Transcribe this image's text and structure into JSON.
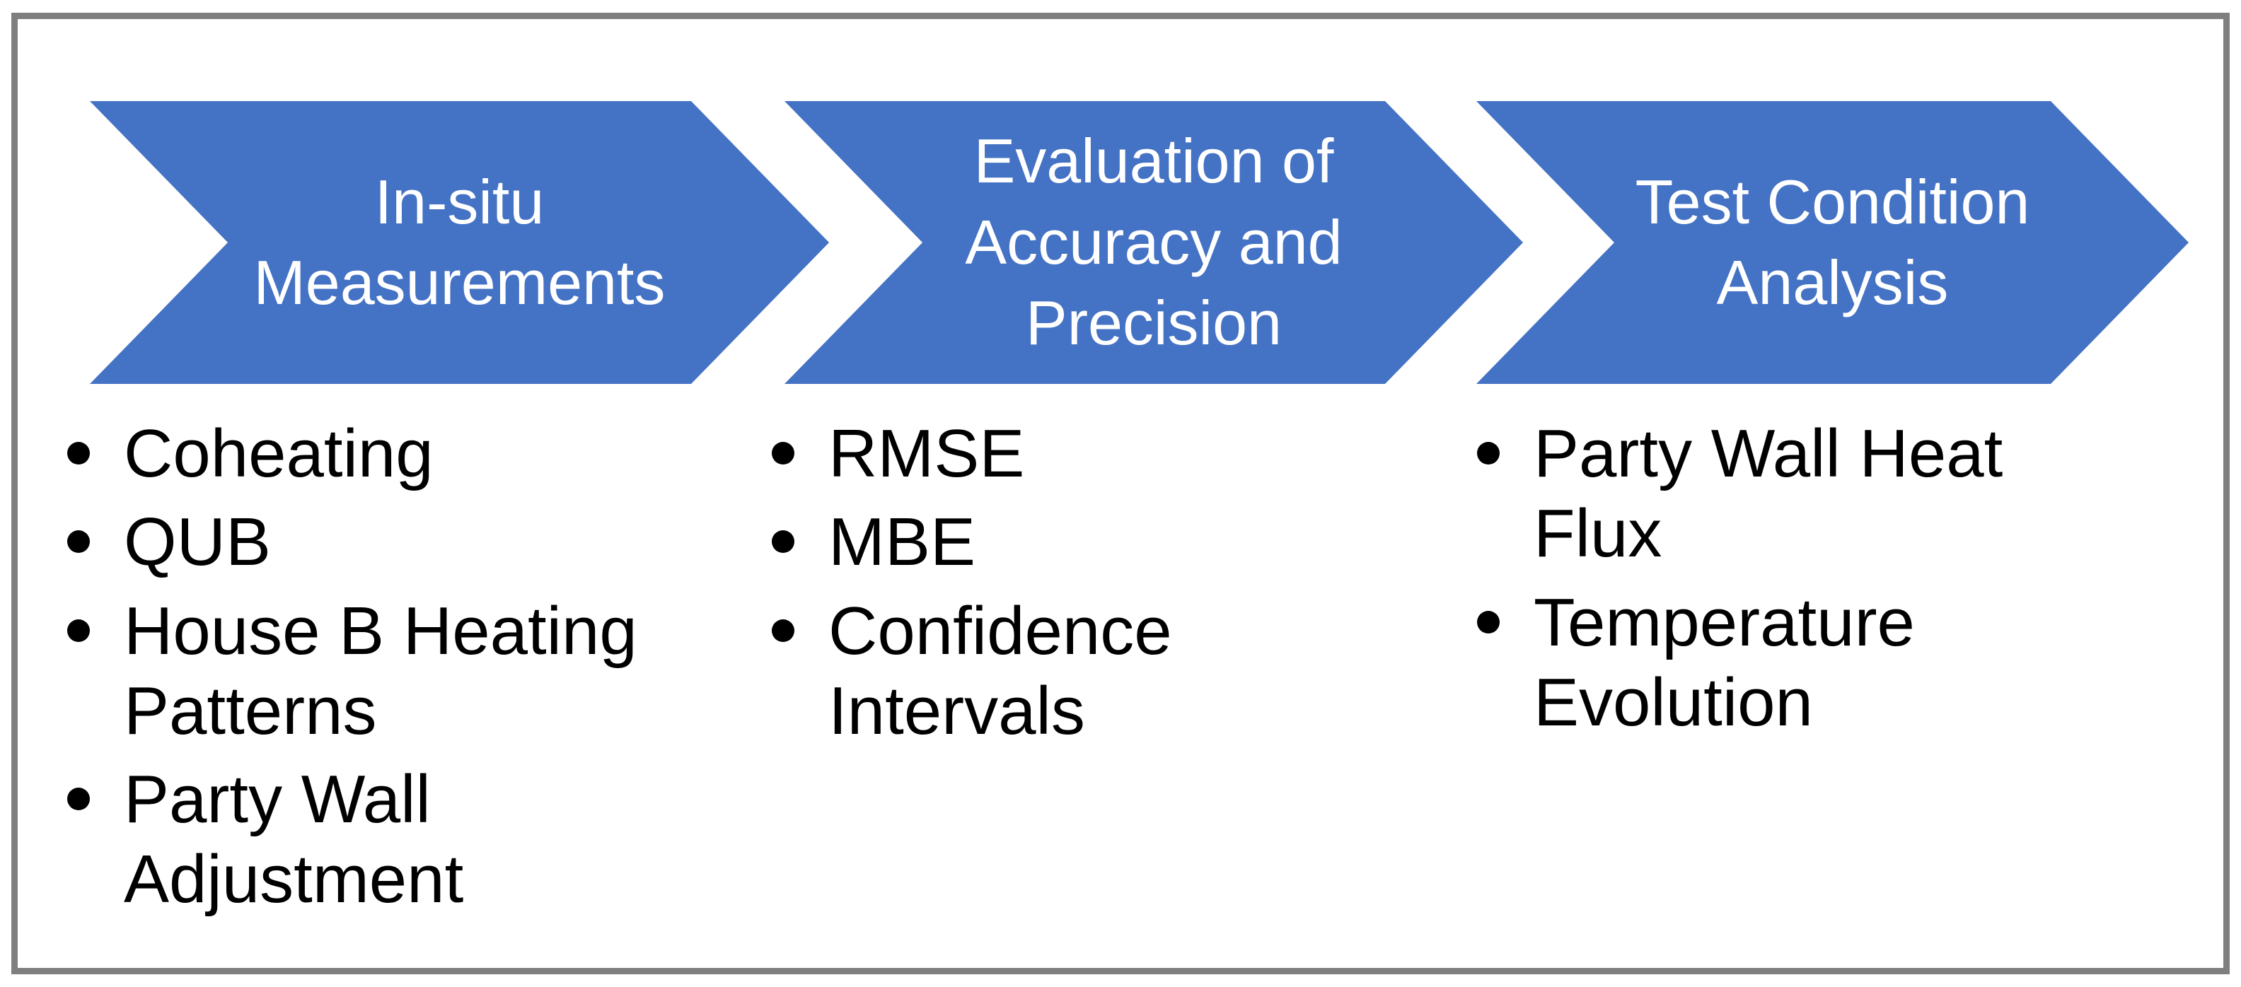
{
  "diagram": {
    "type": "process-flow-chevrons",
    "colors": {
      "chevron_fill": "#4472C4",
      "frame_border": "#7F7F7F",
      "chevron_text": "#FFFFFF",
      "bullet_text": "#000000",
      "background": "#FFFFFF"
    },
    "steps": [
      {
        "title": "In-situ\nMeasurements",
        "items": [
          "Coheating",
          "QUB",
          "House B Heating\nPatterns",
          "Party Wall\nAdjustment"
        ]
      },
      {
        "title": "Evaluation of\nAccuracy and\nPrecision",
        "items": [
          "RMSE",
          "MBE",
          "Confidence\nIntervals"
        ]
      },
      {
        "title": "Test Condition\nAnalysis",
        "items": [
          "Party Wall Heat\nFlux",
          "Temperature\nEvolution"
        ]
      }
    ]
  }
}
